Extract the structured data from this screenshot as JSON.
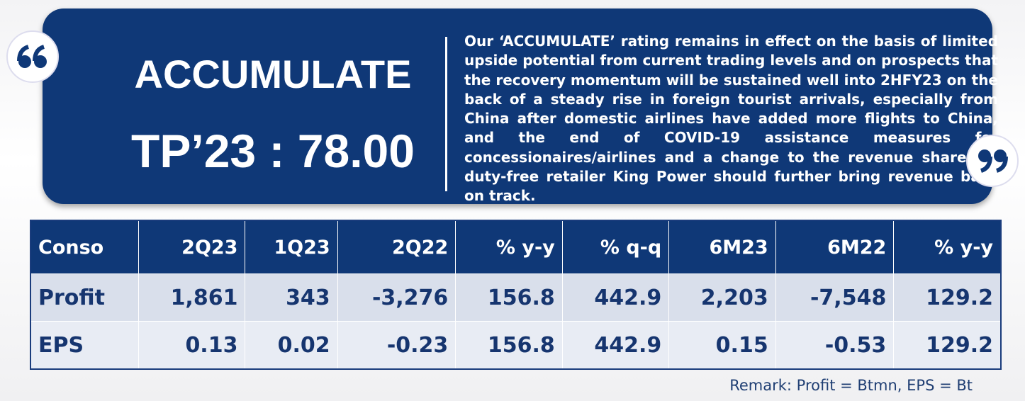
{
  "banner": {
    "rating": "ACCUMULATE",
    "target": "TP’23 : 78.00",
    "summary": "Our ‘ACCUMULATE’ rating remains in effect on the basis of limited upside potential from current trading levels and on prospects that the recovery momentum will be sustained well into 2HFY23 on the back of a steady rise in foreign tourist arrivals, especially from China after domestic airlines have added more flights to China, and the end of COVID-19 assistance measures for concessionaires/airlines and a change to the revenue share for duty-free retailer King Power should further bring revenue back on track."
  },
  "table": {
    "header": [
      "Conso",
      "2Q23",
      "1Q23",
      "2Q22",
      "% y-y",
      "% q-q",
      "6M23",
      "6M22",
      "% y-y"
    ],
    "rows": [
      [
        "Profit",
        "1,861",
        "343",
        "-3,276",
        "156.8",
        "442.9",
        "2,203",
        "-7,548",
        "129.2"
      ],
      [
        "EPS",
        "0.13",
        "0.02",
        "-0.23",
        "156.8",
        "442.9",
        "0.15",
        "-0.53",
        "129.2"
      ]
    ]
  },
  "remark": "Remark: Profit = Btmn, EPS = Bt"
}
